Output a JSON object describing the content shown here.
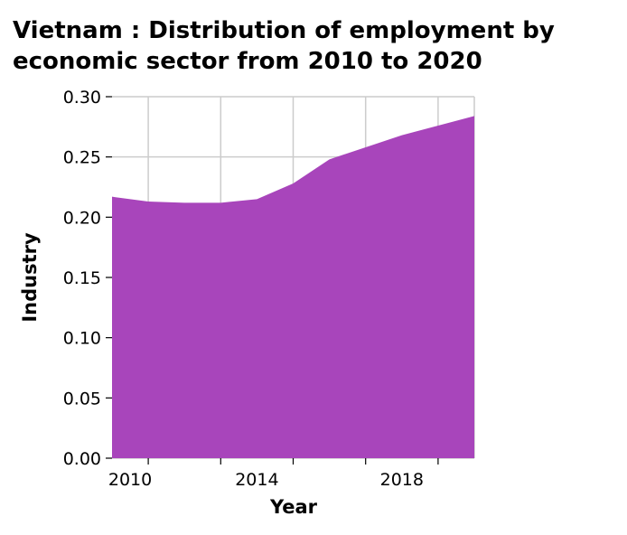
{
  "chart_data": {
    "type": "area",
    "title_lines": [
      "Vietnam : Distribution of employment by",
      "economic sector from 2010 to 2020"
    ],
    "xlabel": "Year",
    "ylabel": "Industry",
    "x": [
      2010,
      2011,
      2012,
      2013,
      2014,
      2015,
      2016,
      2017,
      2018,
      2019,
      2020
    ],
    "series": [
      {
        "values": [
          0.217,
          0.213,
          0.212,
          0.212,
          0.215,
          0.228,
          0.248,
          0.258,
          0.268,
          0.276,
          0.284
        ]
      }
    ],
    "xlim": [
      2010,
      2020
    ],
    "ylim": [
      0,
      0.3
    ],
    "x_ticks": [
      2011,
      2013,
      2015,
      2017,
      2019
    ],
    "x_tick_labels": [
      "2010",
      "2014",
      "2018"
    ],
    "x_tick_label_positions": [
      2010.5,
      2014,
      2018
    ],
    "y_ticks": [
      0,
      0.05,
      0.1,
      0.15,
      0.2,
      0.25,
      0.3
    ],
    "y_tick_labels": [
      "0.00",
      "0.05",
      "0.10",
      "0.15",
      "0.20",
      "0.25",
      "0.30"
    ],
    "grid": true,
    "fill_color": "#a845bb"
  }
}
